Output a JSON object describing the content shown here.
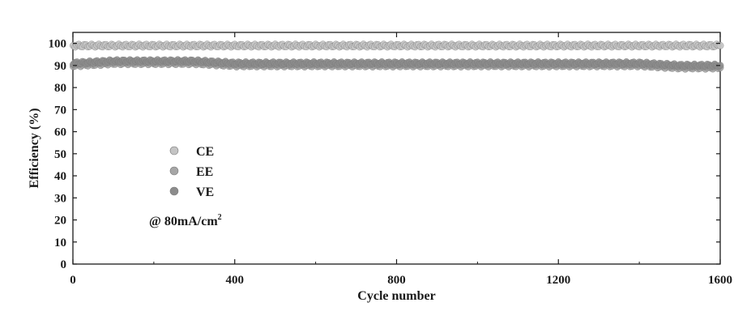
{
  "chart_data": {
    "type": "scatter",
    "title": "",
    "xlabel": "Cycle number",
    "ylabel": "Efficiency (%)",
    "xlim": [
      0,
      1600
    ],
    "ylim": [
      0,
      105
    ],
    "xticks": [
      0,
      400,
      800,
      1200,
      1600
    ],
    "yticks": [
      0,
      10,
      20,
      30,
      40,
      50,
      60,
      70,
      80,
      90,
      100
    ],
    "grid": false,
    "legend_position": "center-left",
    "annotation": {
      "prefix": "@ 80mA/cm",
      "sup": "2"
    },
    "series": [
      {
        "name": "CE",
        "color": "#c4c4c4",
        "x": [
          1,
          100,
          200,
          300,
          400,
          500,
          600,
          700,
          800,
          900,
          1000,
          1100,
          1200,
          1300,
          1400,
          1500,
          1600
        ],
        "y": [
          99,
          99,
          99,
          99,
          99,
          99,
          99,
          99,
          99,
          99,
          99,
          99,
          99,
          99,
          99,
          99,
          99
        ]
      },
      {
        "name": "EE",
        "color": "#a6a6a6",
        "x": [
          1,
          100,
          200,
          300,
          400,
          500,
          600,
          700,
          800,
          900,
          1000,
          1100,
          1200,
          1300,
          1400,
          1500,
          1600
        ],
        "y": [
          90,
          91,
          91,
          91,
          90,
          90,
          90,
          90,
          90,
          90,
          90,
          90,
          90,
          90,
          90,
          89,
          89
        ]
      },
      {
        "name": "VE",
        "color": "#8c8c8c",
        "x": [
          1,
          100,
          200,
          300,
          400,
          500,
          600,
          700,
          800,
          900,
          1000,
          1100,
          1200,
          1300,
          1400,
          1500,
          1600
        ],
        "y": [
          91,
          92,
          92,
          92,
          91,
          91,
          91,
          91,
          91,
          91,
          91,
          91,
          91,
          91,
          91,
          90,
          90
        ]
      }
    ]
  }
}
